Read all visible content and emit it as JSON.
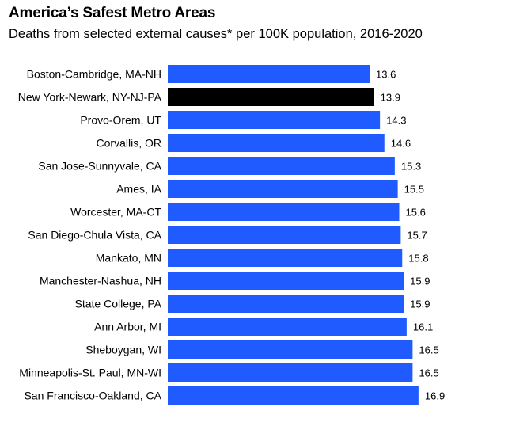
{
  "chart_data": {
    "type": "bar",
    "orientation": "horizontal",
    "title": "America’s Safest Metro Areas",
    "subtitle": "Deaths from selected external causes* per 100K population, 2016-2020",
    "xlabel": "",
    "ylabel": "",
    "xlim": [
      0,
      18.5
    ],
    "categories": [
      "Boston-Cambridge, MA-NH",
      "New York-Newark, NY-NJ-PA",
      "Provo-Orem, UT",
      "Corvallis, OR",
      "San Jose-Sunnyvale, CA",
      "Ames, IA",
      "Worcester, MA-CT",
      "San Diego-Chula Vista, CA",
      "Mankato, MN",
      "Manchester-Nashua, NH",
      "State College, PA",
      "Ann Arbor, MI",
      "Sheboygan, WI",
      "Minneapolis-St. Paul, MN-WI",
      "San Francisco-Oakland, CA"
    ],
    "values": [
      13.6,
      13.9,
      14.3,
      14.6,
      15.3,
      15.5,
      15.6,
      15.7,
      15.8,
      15.9,
      15.9,
      16.1,
      16.5,
      16.5,
      16.9
    ],
    "value_labels": [
      "13.6",
      "13.9",
      "14.3",
      "14.6",
      "15.3",
      "15.5",
      "15.6",
      "15.7",
      "15.8",
      "15.9",
      "15.9",
      "16.1",
      "16.5",
      "16.5",
      "16.9"
    ],
    "highlight_index": 1,
    "colors": {
      "bar": "#1f5bff",
      "highlight": "#000000"
    }
  }
}
